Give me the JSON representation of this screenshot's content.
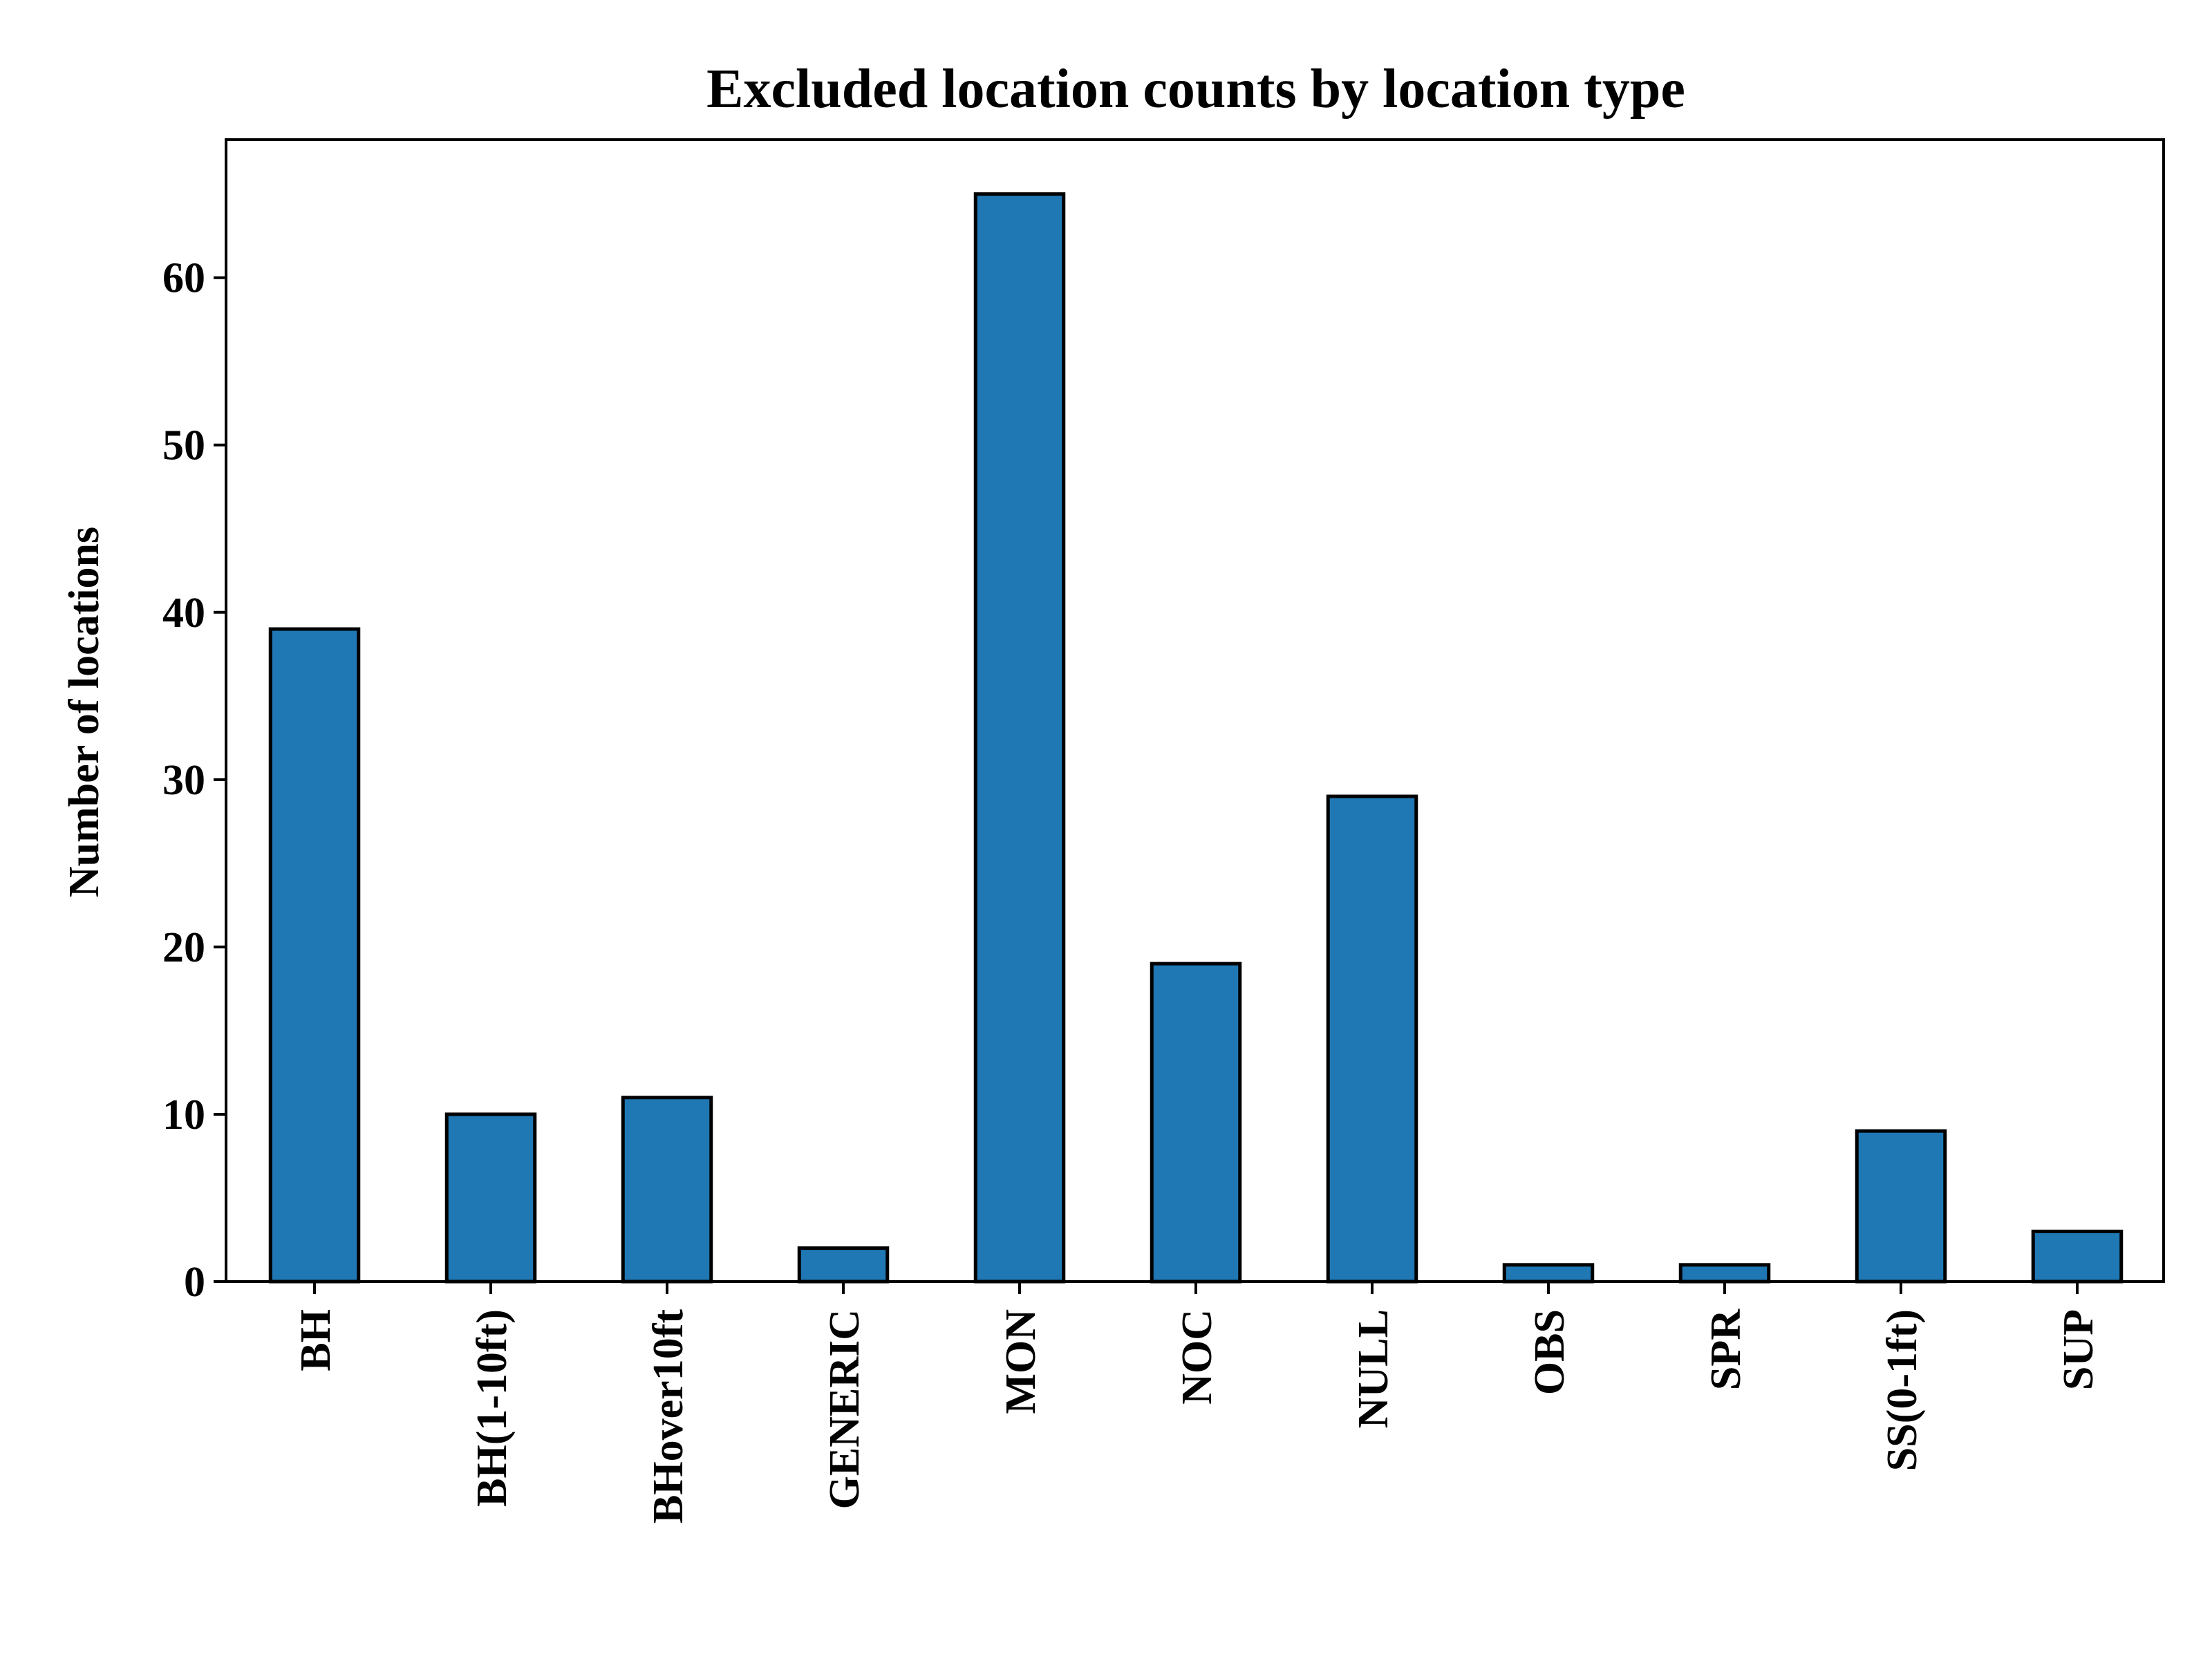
{
  "chart_data": {
    "type": "bar",
    "title": "Excluded location counts by location type",
    "xlabel": "",
    "ylabel": "Number of locations",
    "categories": [
      "BH",
      "BH(1-10ft)",
      "BHover10ft",
      "GENERIC",
      "MON",
      "NOC",
      "NULL",
      "OBS",
      "SPR",
      "SS(0-1ft)",
      "SUP"
    ],
    "values": [
      39,
      10,
      11,
      2,
      65,
      19,
      29,
      1,
      1,
      9,
      3
    ],
    "ylim": [
      0,
      68.25
    ],
    "yticks": [
      0,
      10,
      20,
      30,
      40,
      50,
      60
    ],
    "grid": false,
    "legend": "none",
    "bar_color": "#1f77b4",
    "edge_color": "#000000"
  }
}
